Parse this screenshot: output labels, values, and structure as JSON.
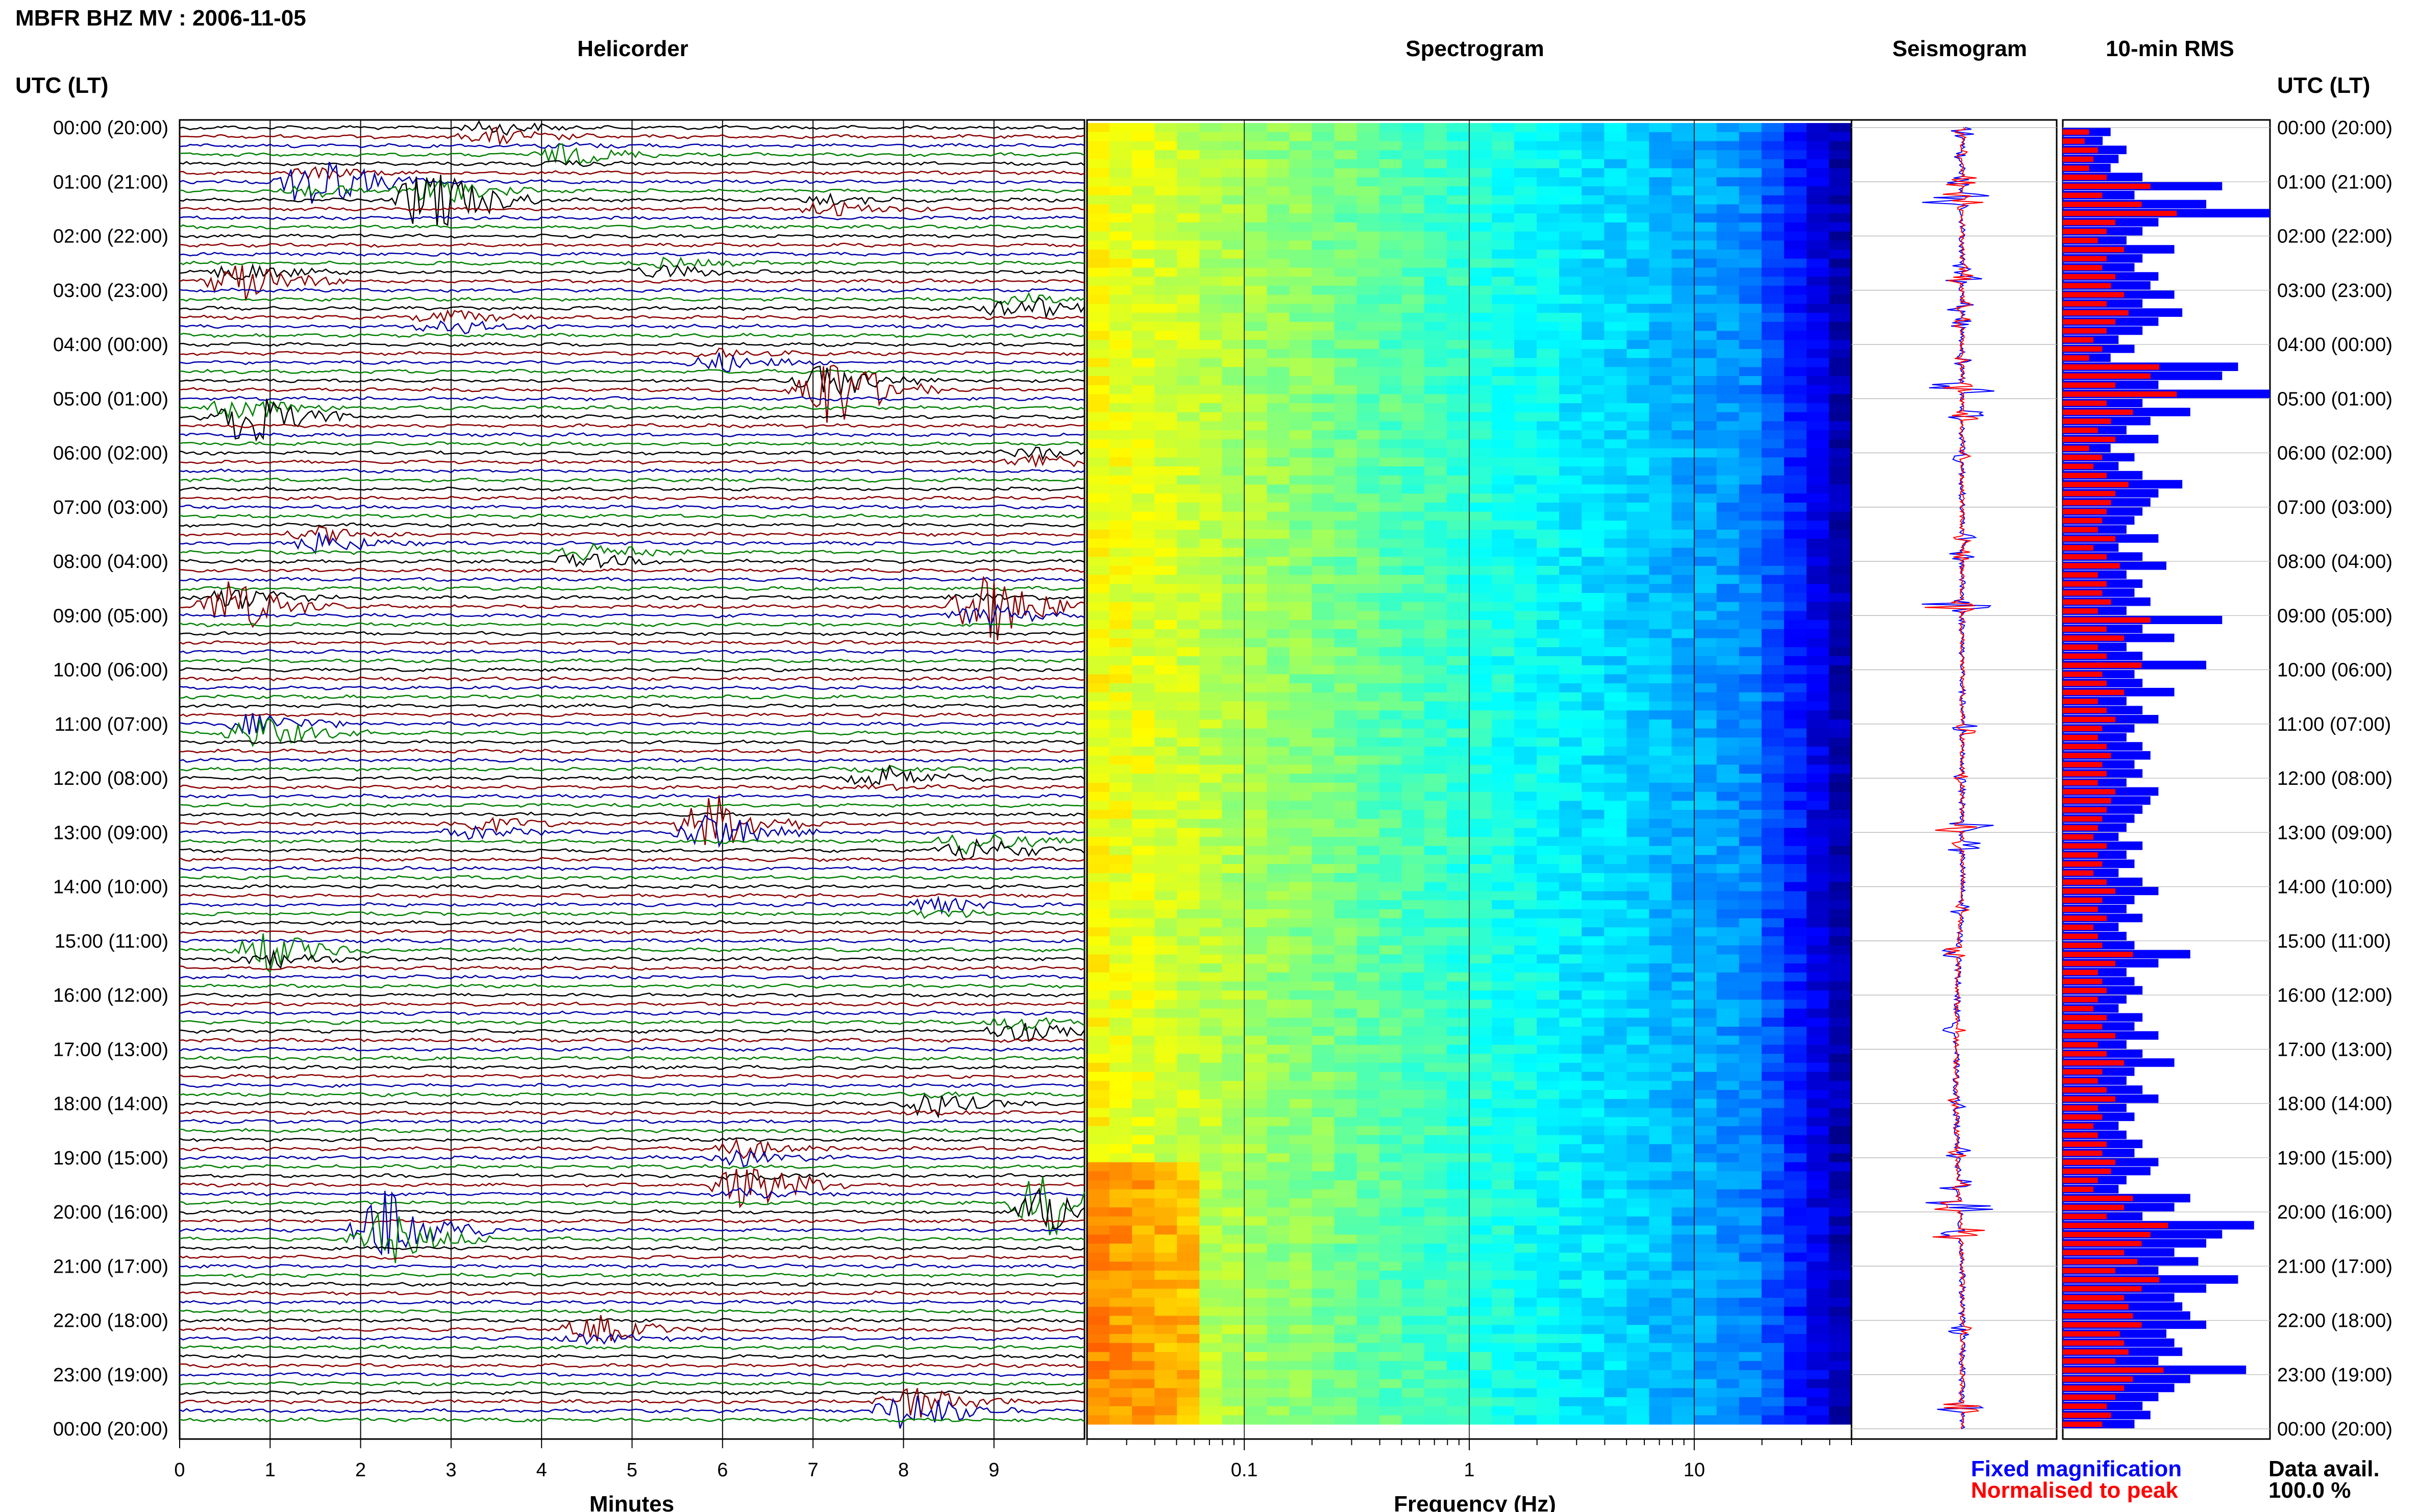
{
  "header": {
    "station_title": "MBFR BHZ MV : 2006-11-05"
  },
  "panels": {
    "helicorder": "Helicorder",
    "spectrogram": "Spectrogram",
    "seismogram": "Seismogram",
    "rms": "10-min RMS"
  },
  "axes": {
    "time_label_left": "UTC (LT)",
    "time_label_right": "UTC (LT)",
    "minutes_label": "Minutes",
    "frequency_label": "Frequency (Hz)",
    "minute_ticks": [
      "0",
      "1",
      "2",
      "3",
      "4",
      "5",
      "6",
      "7",
      "8",
      "9"
    ],
    "frequency_ticks": [
      "0.1",
      "1",
      "10"
    ],
    "hour_ticks": [
      "00:00 (20:00)",
      "01:00 (21:00)",
      "02:00 (22:00)",
      "03:00 (23:00)",
      "04:00 (00:00)",
      "05:00 (01:00)",
      "06:00 (02:00)",
      "07:00 (03:00)",
      "08:00 (04:00)",
      "09:00 (05:00)",
      "10:00 (06:00)",
      "11:00 (07:00)",
      "12:00 (08:00)",
      "13:00 (09:00)",
      "14:00 (10:00)",
      "15:00 (11:00)",
      "16:00 (12:00)",
      "17:00 (13:00)",
      "18:00 (14:00)",
      "19:00 (15:00)",
      "20:00 (16:00)",
      "21:00 (17:00)",
      "22:00 (18:00)",
      "23:00 (19:00)",
      "00:00 (20:00)"
    ]
  },
  "legend": {
    "fixed": "Fixed magnification",
    "normalised": "Normalised to peak",
    "fixed_color": "#0000ff",
    "normalised_color": "#ff0000"
  },
  "availability": {
    "label": "Data avail.",
    "value": "100.0 %"
  },
  "chart_data": {
    "type": "heatmap",
    "minutes_range": [
      0,
      10
    ],
    "frequency_range_hz": [
      0.02,
      50
    ],
    "frequency_scale": "log",
    "rows": 144,
    "trace_colors": [
      "#000000",
      "#8b0000",
      "#0000aa",
      "#008000"
    ],
    "events": [
      {
        "hour": 0.1,
        "minute": 3.5,
        "amp": 0.6
      },
      {
        "hour": 0.5,
        "minute": 4.3,
        "amp": 0.5
      },
      {
        "hour": 1.0,
        "minute": 1.5,
        "amp": 1.5
      },
      {
        "hour": 1.3,
        "minute": 2.8,
        "amp": 2.2
      },
      {
        "hour": 1.45,
        "minute": 7.2,
        "amp": 0.5
      },
      {
        "hour": 2.8,
        "minute": 0.7,
        "amp": 1.2
      },
      {
        "hour": 2.6,
        "minute": 5.4,
        "amp": 0.5
      },
      {
        "hour": 3.3,
        "minute": 9.3,
        "amp": 0.8
      },
      {
        "hour": 3.6,
        "minute": 3.0,
        "amp": 0.6
      },
      {
        "hour": 4.3,
        "minute": 6.0,
        "amp": 0.5
      },
      {
        "hour": 4.8,
        "minute": 7.2,
        "amp": 2.4
      },
      {
        "hour": 5.3,
        "minute": 0.7,
        "amp": 1.8
      },
      {
        "hour": 6.1,
        "minute": 9.5,
        "amp": 0.6
      },
      {
        "hour": 7.6,
        "minute": 1.6,
        "amp": 0.7
      },
      {
        "hour": 7.9,
        "minute": 4.5,
        "amp": 0.7
      },
      {
        "hour": 8.8,
        "minute": 0.6,
        "amp": 1.6
      },
      {
        "hour": 8.85,
        "minute": 8.9,
        "amp": 2.1
      },
      {
        "hour": 11.1,
        "minute": 0.9,
        "amp": 1.2
      },
      {
        "hour": 12.0,
        "minute": 7.8,
        "amp": 0.5
      },
      {
        "hour": 12.9,
        "minute": 5.9,
        "amp": 2.0
      },
      {
        "hour": 12.9,
        "minute": 3.3,
        "amp": 0.6
      },
      {
        "hour": 13.25,
        "minute": 8.8,
        "amp": 1.0
      },
      {
        "hour": 14.4,
        "minute": 8.4,
        "amp": 0.5
      },
      {
        "hour": 15.2,
        "minute": 1.0,
        "amp": 1.2
      },
      {
        "hour": 16.6,
        "minute": 9.3,
        "amp": 0.7
      },
      {
        "hour": 18.0,
        "minute": 8.3,
        "amp": 0.6
      },
      {
        "hour": 18.9,
        "minute": 6.2,
        "amp": 0.7
      },
      {
        "hour": 19.5,
        "minute": 6.3,
        "amp": 1.2
      },
      {
        "hour": 19.9,
        "minute": 9.6,
        "amp": 2.4
      },
      {
        "hour": 20.4,
        "minute": 2.3,
        "amp": 2.6
      },
      {
        "hour": 22.2,
        "minute": 4.6,
        "amp": 0.8
      },
      {
        "hour": 23.6,
        "minute": 8.1,
        "amp": 1.6
      }
    ],
    "rms": [
      0.3,
      0.25,
      0.4,
      0.35,
      0.3,
      0.5,
      1.0,
      0.45,
      0.9,
      1.3,
      0.6,
      0.5,
      0.4,
      0.7,
      0.5,
      0.45,
      0.6,
      0.55,
      0.7,
      0.5,
      0.75,
      0.6,
      0.5,
      0.35,
      0.45,
      0.3,
      1.1,
      1.0,
      0.6,
      1.3,
      0.5,
      0.8,
      0.55,
      0.4,
      0.6,
      0.3,
      0.45,
      0.35,
      0.5,
      0.75,
      0.6,
      0.55,
      0.5,
      0.45,
      0.4,
      0.6,
      0.35,
      0.5,
      0.65,
      0.4,
      0.5,
      0.45,
      0.55,
      0.4,
      1.0,
      0.5,
      0.7,
      0.4,
      0.5,
      0.9,
      0.45,
      0.5,
      0.7,
      0.4,
      0.5,
      0.6,
      0.45,
      0.4,
      0.5,
      0.55,
      0.45,
      0.5,
      0.4,
      0.6,
      0.55,
      0.5,
      0.45,
      0.4,
      0.35,
      0.5,
      0.4,
      0.45,
      0.35,
      0.5,
      0.6,
      0.45,
      0.4,
      0.5,
      0.35,
      0.4,
      0.45,
      0.8,
      0.6,
      0.4,
      0.45,
      0.5,
      0.4,
      0.35,
      0.5,
      0.45,
      0.6,
      0.4,
      0.5,
      0.7,
      0.45,
      0.4,
      0.5,
      0.6,
      0.4,
      0.45,
      0.35,
      0.4,
      0.5,
      0.45,
      0.6,
      0.55,
      0.4,
      0.35,
      0.8,
      0.7,
      0.5,
      1.2,
      1.0,
      0.9,
      0.7,
      0.85,
      0.6,
      1.1,
      0.9,
      0.7,
      0.75,
      0.8,
      0.9,
      0.65,
      0.7,
      0.75,
      0.6,
      1.15,
      0.8,
      0.7,
      0.6,
      0.5,
      0.55,
      0.45
    ]
  }
}
